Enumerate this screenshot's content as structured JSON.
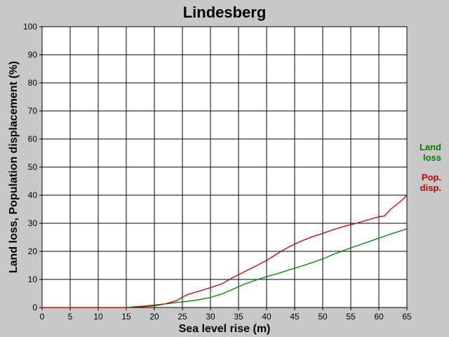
{
  "chart_data": {
    "type": "line",
    "title": "Lindesberg",
    "xlabel": "Sea level rise (m)",
    "ylabel": "Land loss, Population displacement (%)",
    "xlim": [
      0,
      65
    ],
    "ylim": [
      0,
      100
    ],
    "xticks": [
      0,
      5,
      10,
      15,
      20,
      25,
      30,
      35,
      40,
      45,
      50,
      55,
      60,
      65
    ],
    "yticks": [
      0,
      10,
      20,
      30,
      40,
      50,
      60,
      70,
      80,
      90,
      100
    ],
    "grid": true,
    "legend_position": "right",
    "series": [
      {
        "name": "Land loss",
        "legend_lines": [
          "Land",
          "loss"
        ],
        "color": "#008000",
        "x": [
          0,
          15,
          16,
          18,
          20,
          22,
          24,
          26,
          28,
          30,
          32,
          34,
          36,
          38,
          40,
          42,
          44,
          46,
          48,
          50,
          52,
          54,
          56,
          58,
          60,
          62,
          65
        ],
        "y": [
          0,
          0,
          0.2,
          0.5,
          0.9,
          1.3,
          1.8,
          2.2,
          2.8,
          3.6,
          4.8,
          6.5,
          8.3,
          9.7,
          11,
          12.1,
          13.4,
          14.6,
          15.9,
          17.3,
          19,
          20.5,
          21.9,
          23.3,
          24.7,
          26.1,
          28
        ]
      },
      {
        "name": "Pop. disp.",
        "legend_lines": [
          "Pop.",
          "disp."
        ],
        "color": "#c00000",
        "x": [
          0,
          15,
          16,
          18,
          20,
          22,
          24,
          25,
          26,
          28,
          30,
          32,
          34,
          36,
          38,
          40,
          42,
          44,
          46,
          48,
          50,
          52,
          54,
          56,
          58,
          60,
          61,
          62,
          64,
          65
        ],
        "y": [
          0,
          0,
          0.1,
          0.3,
          0.6,
          1.3,
          2.5,
          3.7,
          4.7,
          5.8,
          7.1,
          8.4,
          10.7,
          12.7,
          14.7,
          16.8,
          19.3,
          21.6,
          23.5,
          25.1,
          26.4,
          27.8,
          29,
          30,
          31.2,
          32.3,
          32.6,
          34.8,
          38,
          40
        ]
      }
    ]
  }
}
